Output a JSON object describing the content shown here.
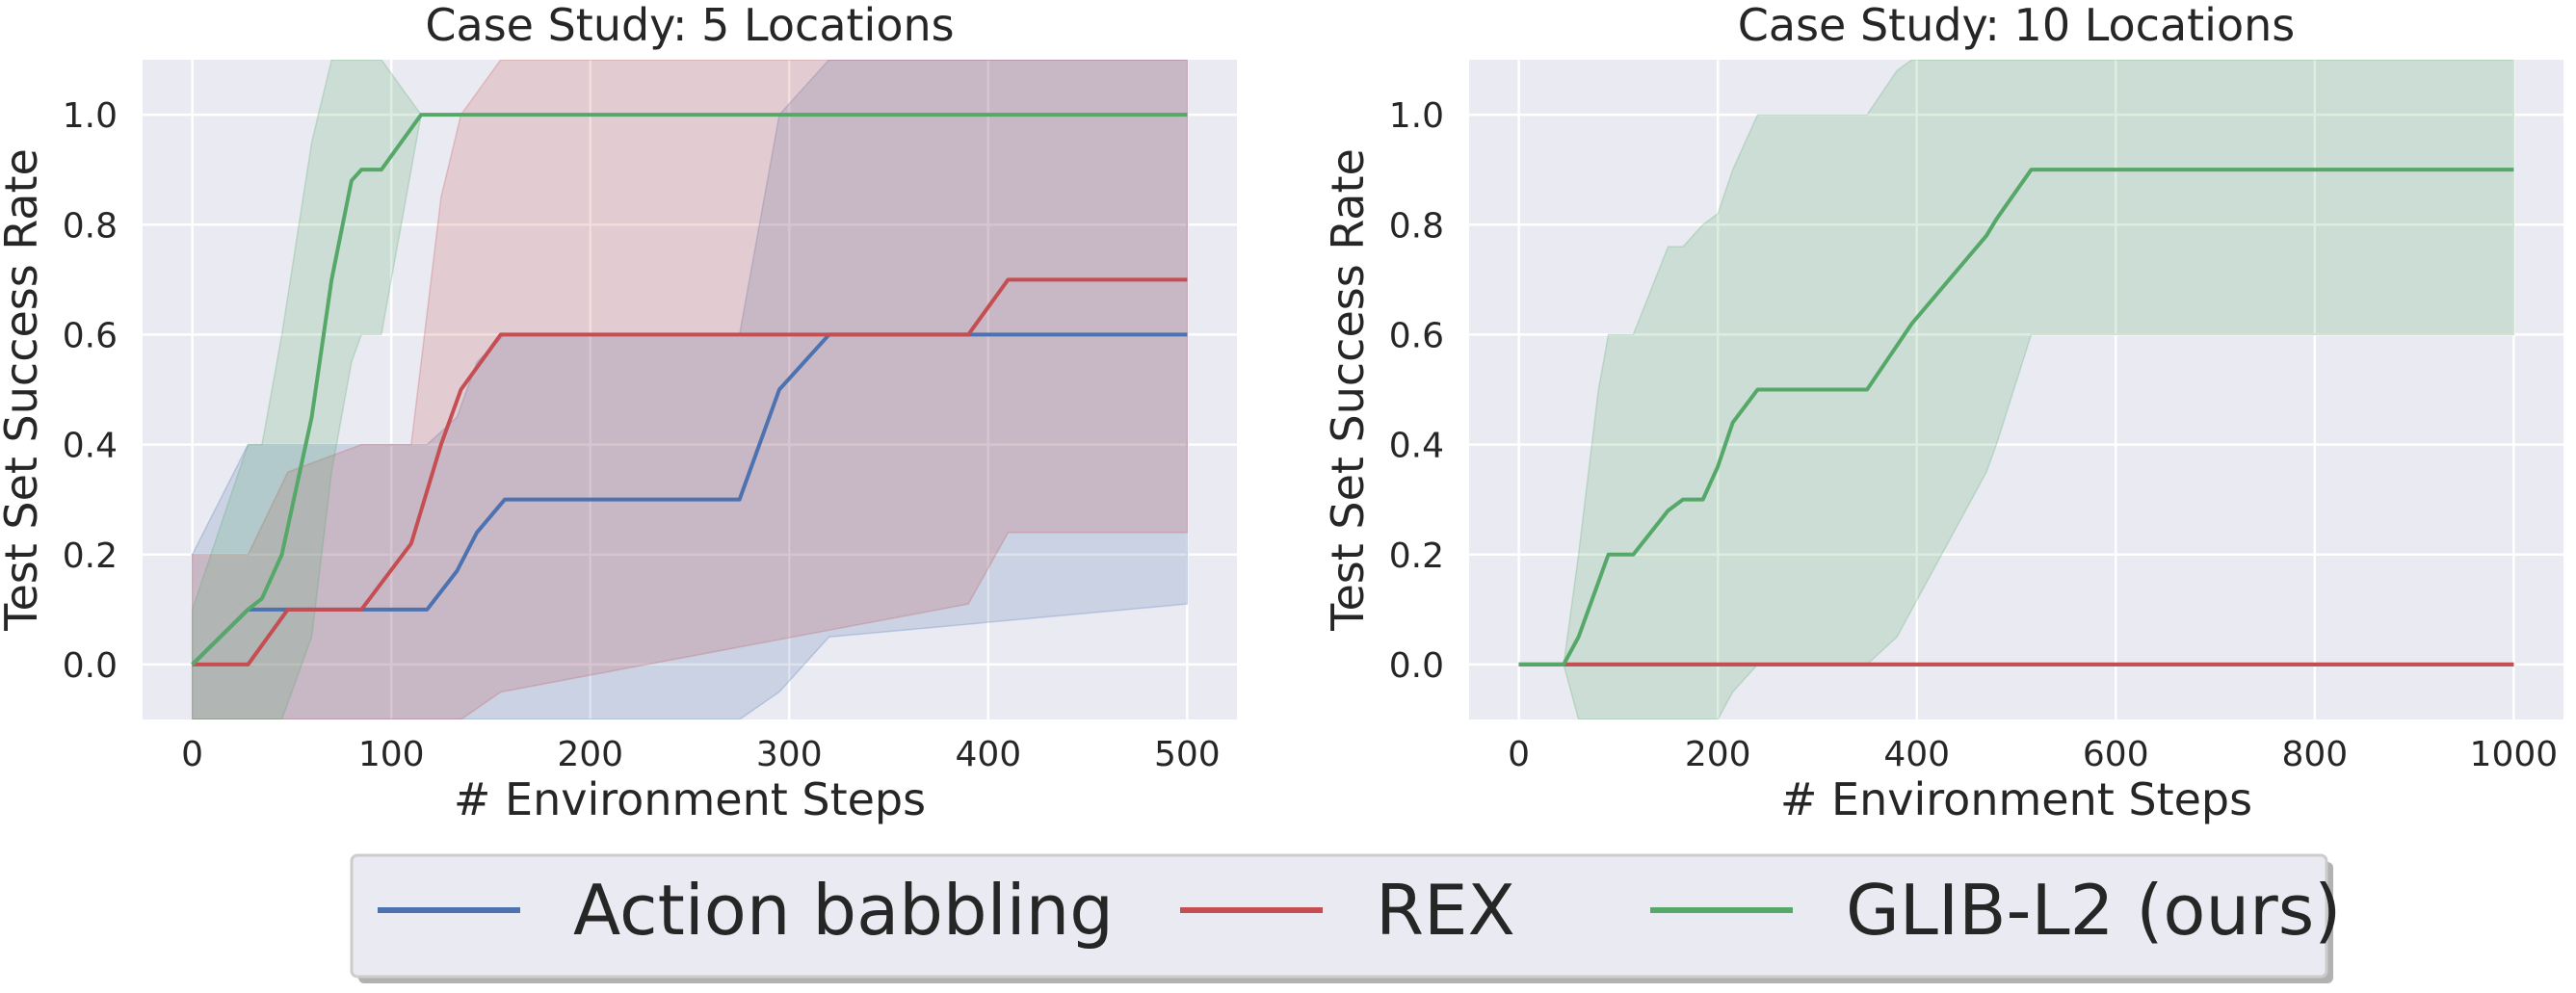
{
  "colors": {
    "background": "#eaeaf2",
    "grid": "#ffffff",
    "legend_fill": "#eaeaf2",
    "legend_border": "#cccccc"
  },
  "legend": {
    "placement": "bottom-center",
    "entries": [
      {
        "label": "Action babbling",
        "color": "#4c72b0"
      },
      {
        "label": "REX",
        "color": "#c44e52"
      },
      {
        "label": "GLIB-L2 (ours)",
        "color": "#55a868"
      }
    ]
  },
  "chart_data": [
    {
      "type": "line",
      "title": "Case Study: 5 Locations",
      "xlabel": "# Environment Steps",
      "ylabel": "Test Set Success Rate",
      "xlim": [
        -25,
        525
      ],
      "ylim": [
        -0.1,
        1.1
      ],
      "xticks": [
        0,
        100,
        200,
        300,
        400,
        500
      ],
      "xtick_labels": [
        "0",
        "100",
        "200",
        "300",
        "400",
        "500"
      ],
      "yticks": [
        0.0,
        0.2,
        0.4,
        0.6,
        0.8,
        1.0
      ],
      "ytick_labels": [
        "0.0",
        "0.2",
        "0.4",
        "0.6",
        "0.8",
        "1.0"
      ],
      "grid": true,
      "series": [
        {
          "name": "Action babbling",
          "color": "#4c72b0",
          "x": [
            0,
            28,
            118,
            133,
            143,
            157,
            275,
            295,
            320,
            500
          ],
          "y": [
            0.0,
            0.1,
            0.1,
            0.17,
            0.24,
            0.3,
            0.3,
            0.5,
            0.6,
            0.6
          ],
          "lower": [
            -0.1,
            -0.1,
            -0.1,
            -0.1,
            -0.1,
            -0.1,
            -0.1,
            -0.05,
            0.05,
            0.11
          ],
          "upper": [
            0.2,
            0.4,
            0.4,
            0.45,
            0.55,
            0.6,
            0.6,
            1.0,
            1.1,
            1.1
          ]
        },
        {
          "name": "REX",
          "color": "#c44e52",
          "x": [
            0,
            28,
            48,
            85,
            110,
            125,
            135,
            155,
            390,
            410,
            500
          ],
          "y": [
            0.0,
            0.0,
            0.1,
            0.1,
            0.22,
            0.4,
            0.5,
            0.6,
            0.6,
            0.7,
            0.7
          ],
          "lower": [
            -0.1,
            -0.1,
            -0.1,
            -0.1,
            -0.1,
            -0.1,
            -0.1,
            -0.05,
            0.11,
            0.24,
            0.24
          ],
          "upper": [
            0.2,
            0.2,
            0.35,
            0.4,
            0.4,
            0.85,
            1.0,
            1.1,
            1.1,
            1.1,
            1.1
          ]
        },
        {
          "name": "GLIB-L2 (ours)",
          "color": "#55a868",
          "x": [
            0,
            28,
            35,
            45,
            60,
            70,
            80,
            85,
            95,
            115,
            500
          ],
          "y": [
            0.0,
            0.1,
            0.12,
            0.2,
            0.45,
            0.7,
            0.88,
            0.9,
            0.9,
            1.0,
            1.0
          ],
          "lower": [
            -0.1,
            -0.1,
            -0.1,
            -0.1,
            0.05,
            0.35,
            0.55,
            0.6,
            0.6,
            1.0,
            1.0
          ],
          "upper": [
            0.1,
            0.4,
            0.4,
            0.6,
            0.95,
            1.1,
            1.1,
            1.1,
            1.1,
            1.0,
            1.0
          ]
        }
      ]
    },
    {
      "type": "line",
      "title": "Case Study: 10 Locations",
      "xlabel": "# Environment Steps",
      "ylabel": "Test Set Success Rate",
      "xlim": [
        -50,
        1050
      ],
      "ylim": [
        -0.1,
        1.1
      ],
      "xticks": [
        0,
        200,
        400,
        600,
        800,
        1000
      ],
      "xtick_labels": [
        "0",
        "200",
        "400",
        "600",
        "800",
        "1000"
      ],
      "yticks": [
        0.0,
        0.2,
        0.4,
        0.6,
        0.8,
        1.0
      ],
      "ytick_labels": [
        "0.0",
        "0.2",
        "0.4",
        "0.6",
        "0.8",
        "1.0"
      ],
      "grid": true,
      "series": [
        {
          "name": "Action babbling",
          "color": "#4c72b0",
          "x": [
            0,
            1000
          ],
          "y": [
            0.0,
            0.0
          ],
          "lower": [
            0.0,
            0.0
          ],
          "upper": [
            0.0,
            0.0
          ]
        },
        {
          "name": "REX",
          "color": "#c44e52",
          "x": [
            0,
            1000
          ],
          "y": [
            0.0,
            0.0
          ],
          "lower": [
            0.0,
            0.0
          ],
          "upper": [
            0.0,
            0.0
          ]
        },
        {
          "name": "GLIB-L2 (ours)",
          "color": "#55a868",
          "x": [
            0,
            45,
            60,
            80,
            90,
            100,
            115,
            150,
            165,
            185,
            200,
            215,
            240,
            350,
            380,
            395,
            470,
            480,
            515,
            1000
          ],
          "y": [
            0.0,
            0.0,
            0.05,
            0.15,
            0.2,
            0.2,
            0.2,
            0.28,
            0.3,
            0.3,
            0.36,
            0.44,
            0.5,
            0.5,
            0.58,
            0.62,
            0.78,
            0.81,
            0.9,
            0.9
          ],
          "lower": [
            0.0,
            0.0,
            -0.1,
            -0.1,
            -0.1,
            -0.1,
            -0.1,
            -0.1,
            -0.1,
            -0.1,
            -0.1,
            -0.05,
            0.0,
            0.0,
            0.05,
            0.1,
            0.35,
            0.4,
            0.6,
            0.6
          ],
          "upper": [
            0.0,
            0.0,
            0.2,
            0.5,
            0.6,
            0.6,
            0.6,
            0.76,
            0.76,
            0.8,
            0.82,
            0.9,
            1.0,
            1.0,
            1.08,
            1.1,
            1.1,
            1.1,
            1.1,
            1.1
          ]
        }
      ]
    }
  ]
}
